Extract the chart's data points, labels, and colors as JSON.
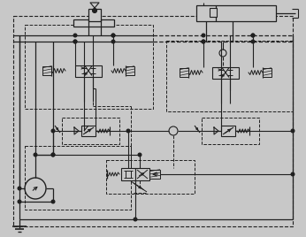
{
  "bg_color": "#c8c8c8",
  "line_color": "#202020",
  "figsize": [
    3.46,
    2.68
  ],
  "dpi": 100
}
